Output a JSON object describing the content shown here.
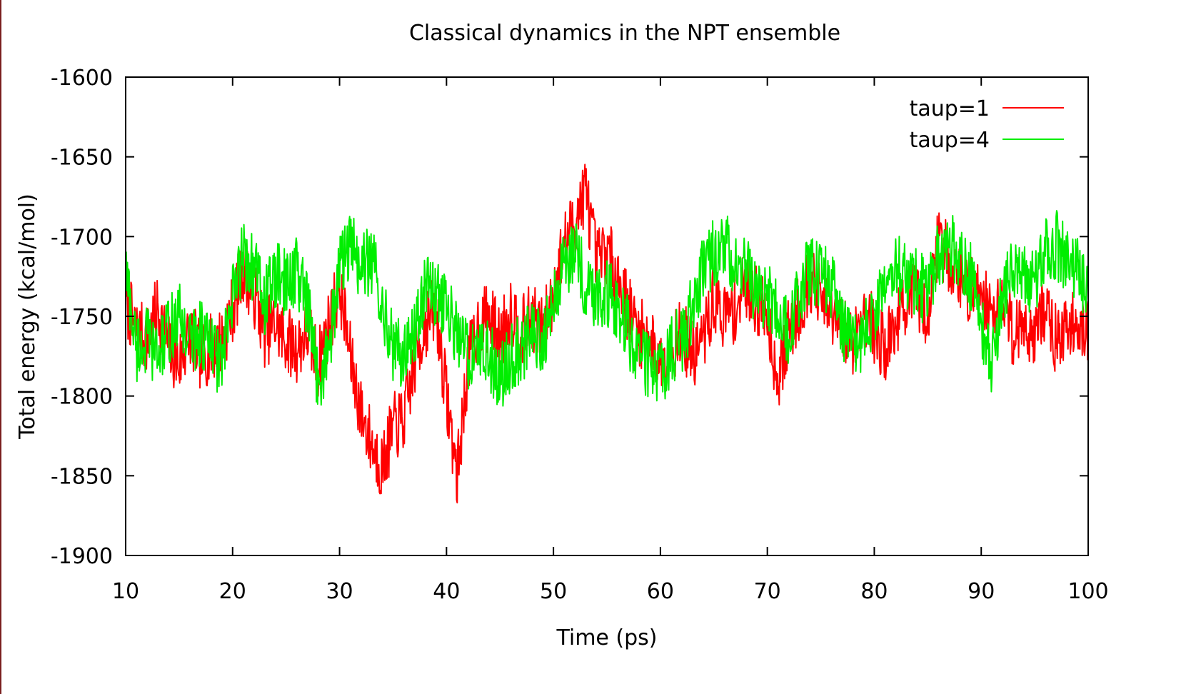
{
  "chart_data": {
    "type": "line",
    "title": "Classical dynamics in the NPT ensemble",
    "xlabel": "Time (ps)",
    "ylabel": "Total energy (kcal/mol)",
    "xlim": [
      10,
      100
    ],
    "ylim": [
      -1900,
      -1600
    ],
    "xticks": [
      10,
      20,
      30,
      40,
      50,
      60,
      70,
      80,
      90,
      100
    ],
    "yticks": [
      -1600,
      -1650,
      -1700,
      -1750,
      -1800,
      -1850,
      -1900
    ],
    "xtick_labels": [
      "10",
      "20",
      "30",
      "40",
      "50",
      "60",
      "70",
      "80",
      "90",
      "100"
    ],
    "ytick_labels": [
      "-1600",
      "-1650",
      "-1700",
      "-1750",
      "-1800",
      "-1850",
      "-1900"
    ],
    "grid": false,
    "legend_position": "top-right",
    "series": [
      {
        "name": "taup=1",
        "color": "#ff0000",
        "x": [
          10,
          11,
          12,
          13,
          14,
          15,
          16,
          17,
          18,
          19,
          20,
          21,
          22,
          23,
          24,
          25,
          26,
          27,
          28,
          29,
          30,
          31,
          32,
          33,
          34,
          35,
          36,
          37,
          38,
          39,
          40,
          41,
          42,
          43,
          44,
          45,
          46,
          47,
          48,
          49,
          50,
          51,
          52,
          53,
          54,
          55,
          56,
          57,
          58,
          59,
          60,
          61,
          62,
          63,
          64,
          65,
          66,
          67,
          68,
          69,
          70,
          71,
          72,
          73,
          74,
          75,
          76,
          77,
          78,
          79,
          80,
          81,
          82,
          83,
          84,
          85,
          86,
          87,
          88,
          89,
          90,
          91,
          92,
          93,
          94,
          95,
          96,
          97,
          98,
          99,
          100
        ],
        "y": [
          -1740,
          -1760,
          -1765,
          -1745,
          -1770,
          -1780,
          -1760,
          -1775,
          -1770,
          -1765,
          -1745,
          -1720,
          -1735,
          -1760,
          -1755,
          -1765,
          -1770,
          -1760,
          -1780,
          -1755,
          -1730,
          -1775,
          -1810,
          -1830,
          -1845,
          -1820,
          -1815,
          -1780,
          -1755,
          -1745,
          -1800,
          -1850,
          -1780,
          -1755,
          -1750,
          -1765,
          -1745,
          -1760,
          -1750,
          -1760,
          -1735,
          -1705,
          -1690,
          -1670,
          -1715,
          -1710,
          -1725,
          -1745,
          -1760,
          -1765,
          -1780,
          -1770,
          -1760,
          -1775,
          -1765,
          -1740,
          -1750,
          -1745,
          -1730,
          -1740,
          -1750,
          -1790,
          -1760,
          -1745,
          -1725,
          -1740,
          -1750,
          -1760,
          -1765,
          -1745,
          -1760,
          -1770,
          -1755,
          -1740,
          -1735,
          -1750,
          -1700,
          -1715,
          -1725,
          -1735,
          -1730,
          -1750,
          -1740,
          -1760,
          -1755,
          -1760,
          -1745,
          -1765,
          -1760,
          -1750,
          -1765
        ],
        "noise": 22
      },
      {
        "name": "taup=4",
        "color": "#00ee00",
        "x": [
          10,
          11,
          12,
          13,
          14,
          15,
          16,
          17,
          18,
          19,
          20,
          21,
          22,
          23,
          24,
          25,
          26,
          27,
          28,
          29,
          30,
          31,
          32,
          33,
          34,
          35,
          36,
          37,
          38,
          39,
          40,
          41,
          42,
          43,
          44,
          45,
          46,
          47,
          48,
          49,
          50,
          51,
          52,
          53,
          54,
          55,
          56,
          57,
          58,
          59,
          60,
          61,
          62,
          63,
          64,
          65,
          66,
          67,
          68,
          69,
          70,
          71,
          72,
          73,
          74,
          75,
          76,
          77,
          78,
          79,
          80,
          81,
          82,
          83,
          84,
          85,
          86,
          87,
          88,
          89,
          90,
          91,
          92,
          93,
          94,
          95,
          96,
          97,
          98,
          99,
          100
        ],
        "y": [
          -1720,
          -1770,
          -1765,
          -1775,
          -1760,
          -1750,
          -1765,
          -1760,
          -1770,
          -1780,
          -1740,
          -1710,
          -1720,
          -1740,
          -1725,
          -1730,
          -1720,
          -1745,
          -1790,
          -1770,
          -1720,
          -1705,
          -1720,
          -1715,
          -1740,
          -1770,
          -1775,
          -1760,
          -1730,
          -1735,
          -1745,
          -1760,
          -1775,
          -1770,
          -1775,
          -1790,
          -1775,
          -1770,
          -1760,
          -1765,
          -1740,
          -1720,
          -1705,
          -1730,
          -1735,
          -1735,
          -1745,
          -1760,
          -1775,
          -1780,
          -1790,
          -1770,
          -1765,
          -1745,
          -1720,
          -1710,
          -1705,
          -1715,
          -1720,
          -1735,
          -1740,
          -1745,
          -1760,
          -1735,
          -1720,
          -1725,
          -1730,
          -1760,
          -1770,
          -1765,
          -1745,
          -1735,
          -1720,
          -1725,
          -1730,
          -1735,
          -1710,
          -1705,
          -1715,
          -1725,
          -1760,
          -1780,
          -1735,
          -1720,
          -1725,
          -1730,
          -1710,
          -1705,
          -1715,
          -1720,
          -1740
        ],
        "noise": 22
      }
    ]
  }
}
